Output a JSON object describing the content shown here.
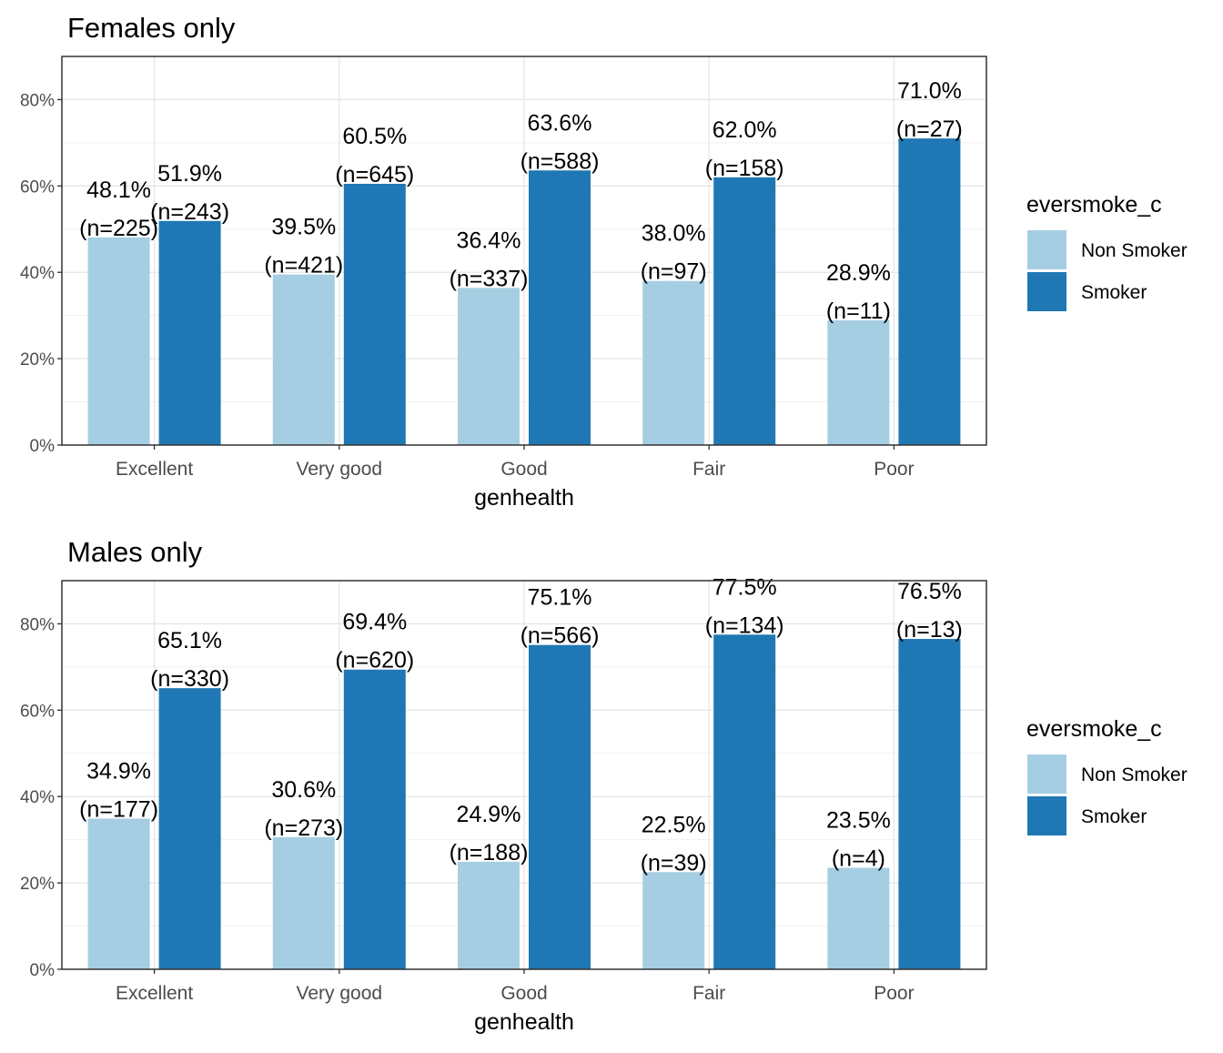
{
  "chart_data": [
    {
      "type": "bar",
      "title": "Females only",
      "xlabel": "genhealth",
      "ylabel": "",
      "ylim": [
        0,
        0.9
      ],
      "yticks": [
        "0%",
        "20%",
        "40%",
        "60%",
        "80%"
      ],
      "ytick_values": [
        0,
        0.2,
        0.4,
        0.6,
        0.8
      ],
      "grid": true,
      "categories": [
        "Excellent",
        "Very good",
        "Good",
        "Fair",
        "Poor"
      ],
      "series": [
        {
          "name": "Non Smoker",
          "color": "#a6cee3",
          "values": [
            0.481,
            0.395,
            0.364,
            0.38,
            0.289
          ],
          "labels": [
            [
              "48.1%",
              "(n=225)"
            ],
            [
              "39.5%",
              "(n=421)"
            ],
            [
              "36.4%",
              "(n=337)"
            ],
            [
              "38.0%",
              "(n=97)"
            ],
            [
              "28.9%",
              "(n=11)"
            ]
          ]
        },
        {
          "name": "Smoker",
          "color": "#1f78b4",
          "values": [
            0.519,
            0.605,
            0.636,
            0.62,
            0.71
          ],
          "labels": [
            [
              "51.9%",
              "(n=243)"
            ],
            [
              "60.5%",
              "(n=645)"
            ],
            [
              "63.6%",
              "(n=588)"
            ],
            [
              "62.0%",
              "(n=158)"
            ],
            [
              "71.0%",
              "(n=27)"
            ]
          ]
        }
      ],
      "legend": {
        "title": "eversmoke_c",
        "placement": "right"
      }
    },
    {
      "type": "bar",
      "title": "Males only",
      "xlabel": "genhealth",
      "ylabel": "",
      "ylim": [
        0,
        0.9
      ],
      "yticks": [
        "0%",
        "20%",
        "40%",
        "60%",
        "80%"
      ],
      "ytick_values": [
        0,
        0.2,
        0.4,
        0.6,
        0.8
      ],
      "grid": true,
      "categories": [
        "Excellent",
        "Very good",
        "Good",
        "Fair",
        "Poor"
      ],
      "series": [
        {
          "name": "Non Smoker",
          "color": "#a6cee3",
          "values": [
            0.349,
            0.306,
            0.249,
            0.225,
            0.235
          ],
          "labels": [
            [
              "34.9%",
              "(n=177)"
            ],
            [
              "30.6%",
              "(n=273)"
            ],
            [
              "24.9%",
              "(n=188)"
            ],
            [
              "22.5%",
              "(n=39)"
            ],
            [
              "23.5%",
              "(n=4)"
            ]
          ]
        },
        {
          "name": "Smoker",
          "color": "#1f78b4",
          "values": [
            0.651,
            0.694,
            0.751,
            0.775,
            0.765
          ],
          "labels": [
            [
              "65.1%",
              "(n=330)"
            ],
            [
              "69.4%",
              "(n=620)"
            ],
            [
              "75.1%",
              "(n=566)"
            ],
            [
              "77.5%",
              "(n=134)"
            ],
            [
              "76.5%",
              "(n=13)"
            ]
          ]
        }
      ],
      "legend": {
        "title": "eversmoke_c",
        "placement": "right"
      }
    }
  ]
}
